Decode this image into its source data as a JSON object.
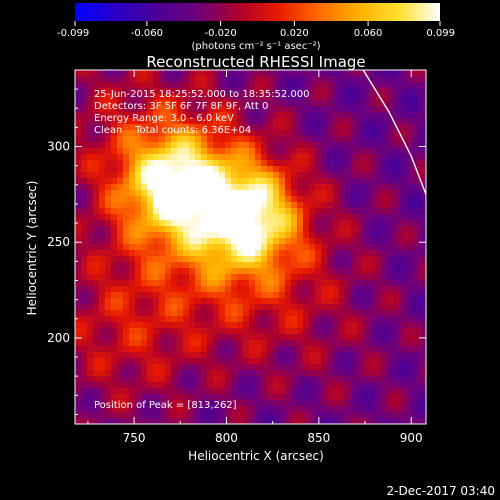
{
  "chart_data": {
    "type": "heatmap",
    "title": "Reconstructed RHESSI Image",
    "xlabel": "Heliocentric X (arcsec)",
    "ylabel": "Heliocentric Y (arcsec)",
    "xlim": [
      718,
      908
    ],
    "ylim": [
      155,
      340
    ],
    "x_ticks": [
      750,
      800,
      850,
      900
    ],
    "y_ticks": [
      200,
      250,
      300
    ],
    "colorbar": {
      "label": "(photons cm⁻² s⁻¹ asec⁻²)",
      "range": [
        -0.099,
        0.099
      ],
      "ticks": [
        "-0.099",
        "-0.060",
        "-0.020",
        "0.020",
        "0.060",
        "0.099"
      ],
      "colormap": [
        "#0000ff",
        "#2a00c8",
        "#4a0096",
        "#6e007c",
        "#aa0030",
        "#e81a00",
        "#ff6a00",
        "#ffb000",
        "#ffe030",
        "#ffffff"
      ]
    },
    "annotations": [
      "25-Jun-2015 18:25:52.000 to 18:35:52.000",
      "Detectors: 3F 5F 6F 7F 8F 9F, Att 0",
      "Energy Range: 3.0 - 6.0 keV",
      "Clean    Total counts: 6.36E+04"
    ],
    "peak_label": "Position of Peak = [813,262]",
    "sources": [
      {
        "x": 771,
        "y": 280,
        "peak": 0.092
      },
      {
        "x": 811,
        "y": 264,
        "peak": 0.099
      }
    ],
    "limb_points": [
      [
        874,
        340
      ],
      [
        888,
        318
      ],
      [
        900,
        295
      ],
      [
        908,
        275
      ],
      [
        911,
        255
      ]
    ],
    "timestamp": "2-Dec-2017 03:40"
  }
}
